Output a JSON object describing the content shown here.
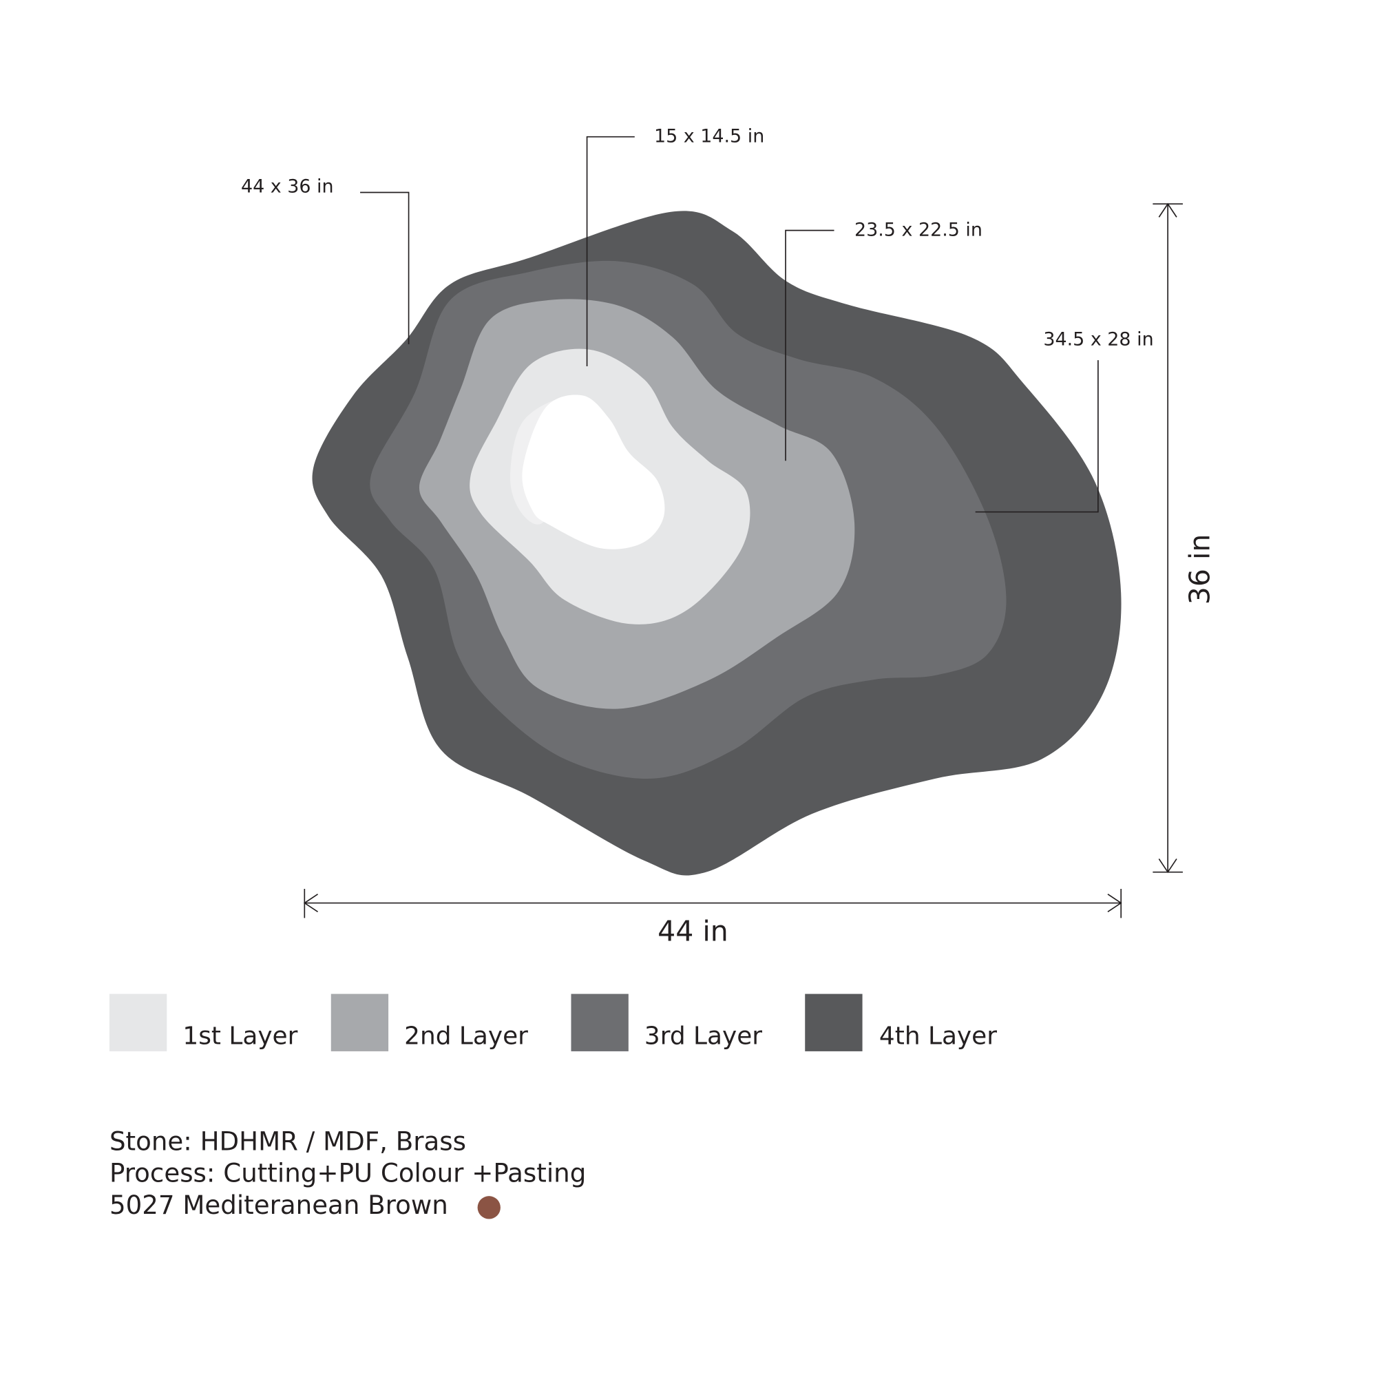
{
  "callouts": {
    "outer": "44 x 36 in",
    "inner": "15 x 14.5 in",
    "second": "23.5 x 22.5 in",
    "third": "34.5 x 28 in"
  },
  "dimensions": {
    "width": "44 in",
    "height": "36 in"
  },
  "legend": [
    "1st Layer",
    "2nd Layer",
    "3rd Layer",
    "4th Layer"
  ],
  "specs": [
    "Stone: HDHMR / MDF, Brass",
    "Process: Cutting+PU Colour +Pasting",
    "5027 Mediteranean Brown"
  ]
}
